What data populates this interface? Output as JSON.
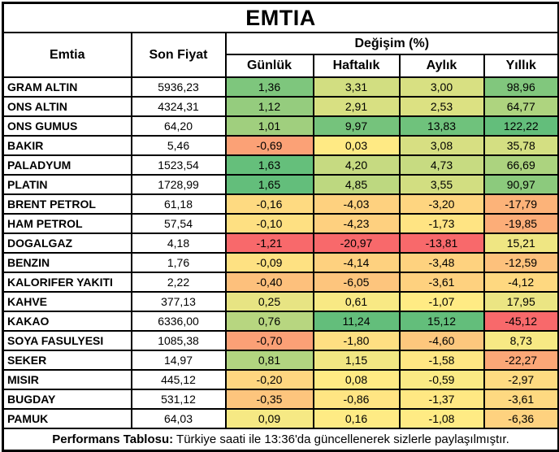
{
  "chart_data": {
    "type": "table",
    "title": "EMTIA",
    "columns": {
      "emtia": "Emtia",
      "price": "Son Fiyat",
      "group": "Değişim (%)",
      "periods": [
        "Günlük",
        "Haftalık",
        "Aylık",
        "Yıllık"
      ]
    },
    "rows": [
      {
        "name": "GRAM ALTIN",
        "price": "5936,23",
        "changes": [
          1.36,
          3.31,
          3.0,
          98.96
        ]
      },
      {
        "name": "ONS ALTIN",
        "price": "4324,31",
        "changes": [
          1.12,
          2.91,
          2.53,
          64.77
        ]
      },
      {
        "name": "ONS GUMUS",
        "price": "64,20",
        "changes": [
          1.01,
          9.97,
          13.83,
          122.22
        ]
      },
      {
        "name": "BAKIR",
        "price": "5,46",
        "changes": [
          -0.69,
          0.03,
          3.08,
          35.78
        ]
      },
      {
        "name": "PALADYUM",
        "price": "1523,54",
        "changes": [
          1.63,
          4.2,
          4.73,
          66.69
        ]
      },
      {
        "name": "PLATIN",
        "price": "1728,99",
        "changes": [
          1.65,
          4.85,
          3.55,
          90.97
        ]
      },
      {
        "name": "BRENT PETROL",
        "price": "61,18",
        "changes": [
          -0.16,
          -4.03,
          -3.2,
          -17.79
        ]
      },
      {
        "name": "HAM PETROL",
        "price": "57,54",
        "changes": [
          -0.1,
          -4.23,
          -1.73,
          -19.85
        ]
      },
      {
        "name": "DOGALGAZ",
        "price": "4,18",
        "changes": [
          -1.21,
          -20.97,
          -13.81,
          15.21
        ]
      },
      {
        "name": "BENZIN",
        "price": "1,76",
        "changes": [
          -0.09,
          -4.14,
          -3.48,
          -12.59
        ]
      },
      {
        "name": "KALORIFER YAKITI",
        "price": "2,22",
        "changes": [
          -0.4,
          -6.05,
          -3.61,
          -4.12
        ]
      },
      {
        "name": "KAHVE",
        "price": "377,13",
        "changes": [
          0.25,
          0.61,
          -1.07,
          17.95
        ]
      },
      {
        "name": "KAKAO",
        "price": "6336,00",
        "changes": [
          0.76,
          11.24,
          15.12,
          -45.12
        ]
      },
      {
        "name": "SOYA FASULYESI",
        "price": "1085,38",
        "changes": [
          -0.7,
          -1.8,
          -4.6,
          8.73
        ]
      },
      {
        "name": "SEKER",
        "price": "14,97",
        "changes": [
          0.81,
          1.15,
          -1.58,
          -22.27
        ]
      },
      {
        "name": "MISIR",
        "price": "445,12",
        "changes": [
          -0.2,
          0.08,
          -0.59,
          -2.97
        ]
      },
      {
        "name": "BUGDAY",
        "price": "531,12",
        "changes": [
          -0.35,
          -0.86,
          -1.37,
          -3.61
        ]
      },
      {
        "name": "PAMUK",
        "price": "64,03",
        "changes": [
          0.09,
          0.16,
          -1.08,
          -6.36
        ]
      }
    ],
    "layout": {
      "grid": "all-borders",
      "heatmap_scope": "per-column",
      "heatmap_midpoint": "median"
    }
  },
  "heatmap": {
    "min_color": "#F8696B",
    "mid_color": "#FFEB84",
    "max_color": "#63BE7B"
  },
  "footer": {
    "label": "Performans Tablosu:",
    "text": " Türkiye saati ile 13:36'da güncellenerek sizlerle paylaşılmıştır."
  }
}
